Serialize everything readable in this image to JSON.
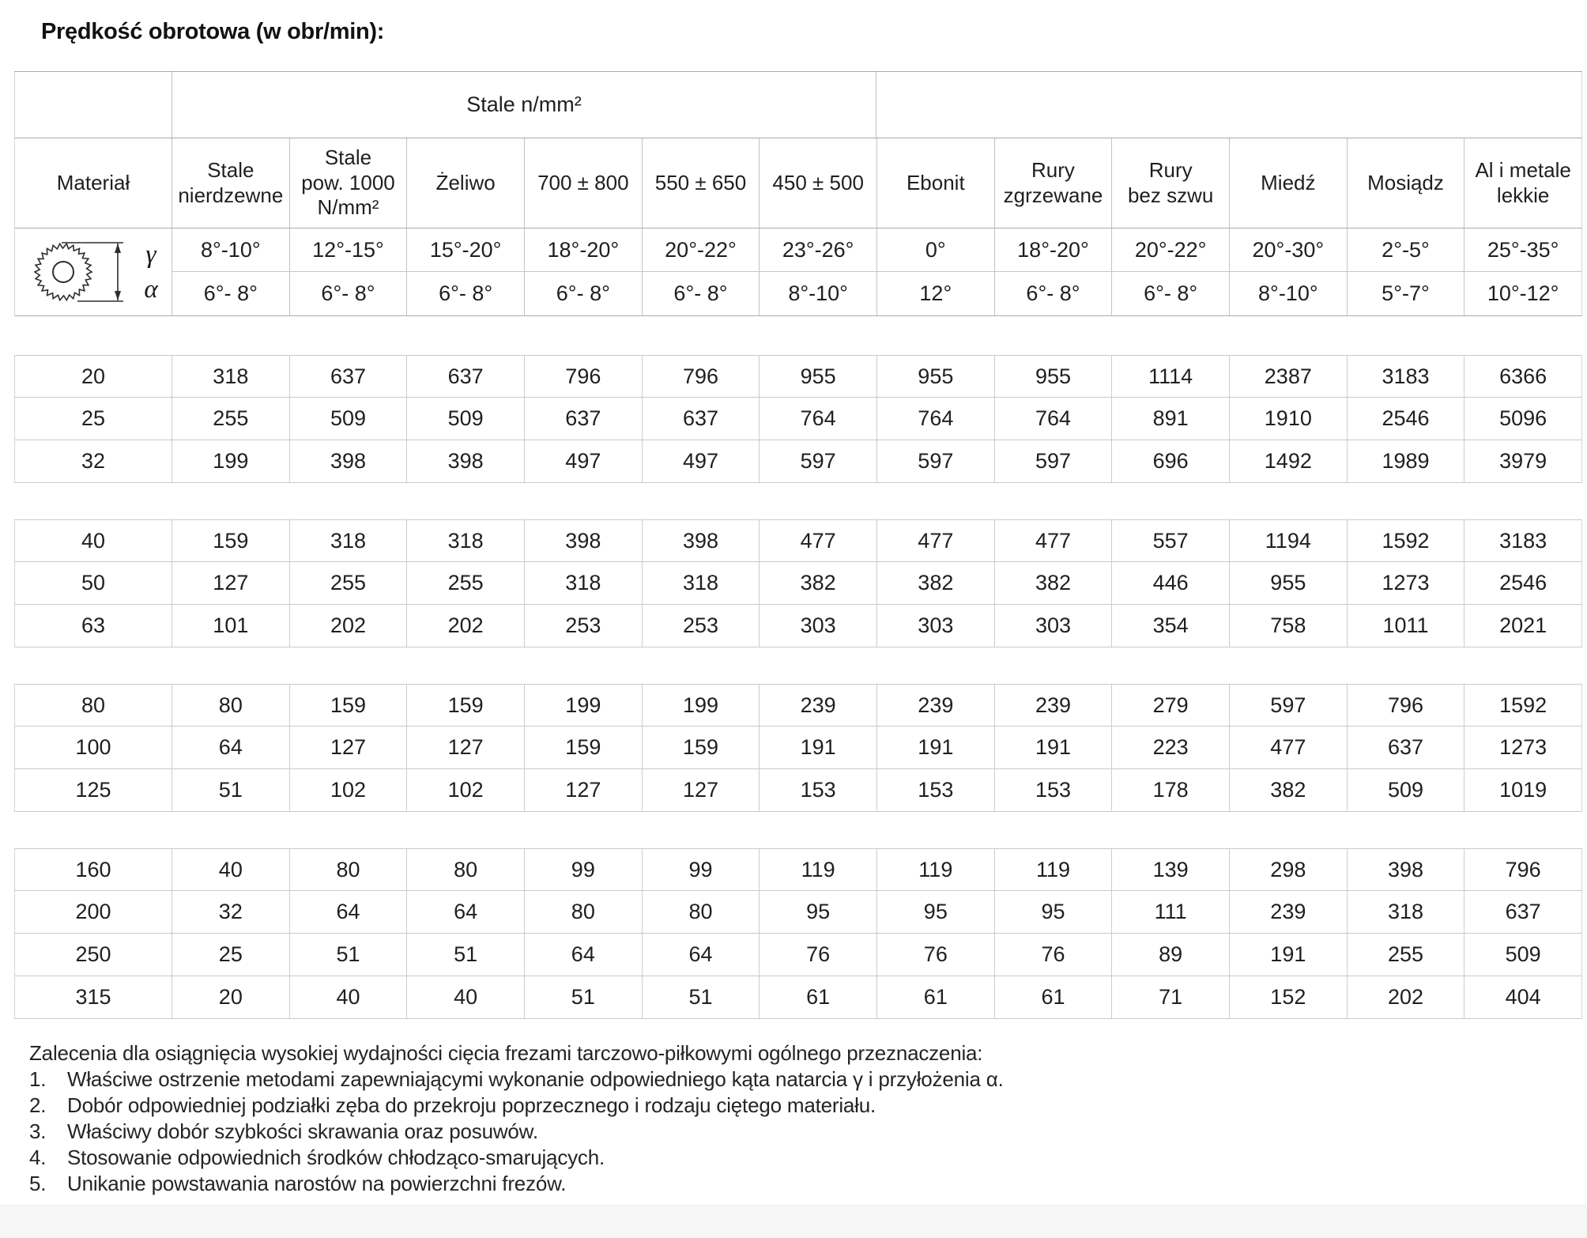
{
  "title": "Prędkość obrotowa (w obr/min):",
  "table": {
    "span_header": "Stale n/mm²",
    "columns": [
      "Materiał",
      "Stale\nnierdzewne",
      "Stale\npow. 1000\nN/mm²",
      "Żeliwo",
      "700 ± 800",
      "550 ± 650",
      "450 ± 500",
      "Ebonit",
      "Rury\nzgrzewane",
      "Rury\nbez szwu",
      "Miedź",
      "Mosiądz",
      "Al i metale\nlekkie"
    ],
    "angle_rows": {
      "gamma_label": "γ",
      "alpha_label": "α",
      "gamma": [
        "8°-10°",
        "12°-15°",
        "15°-20°",
        "18°-20°",
        "20°-22°",
        "23°-26°",
        "0°",
        "18°-20°",
        "20°-22°",
        "20°-30°",
        "2°-5°",
        "25°-35°"
      ],
      "alpha": [
        "6°- 8°",
        "6°- 8°",
        "6°- 8°",
        "6°- 8°",
        "6°- 8°",
        "8°-10°",
        "12°",
        "6°- 8°",
        "6°- 8°",
        "8°-10°",
        "5°-7°",
        "10°-12°"
      ]
    },
    "groups": [
      [
        {
          "label": "20",
          "values": [
            318,
            637,
            637,
            796,
            796,
            955,
            955,
            955,
            1114,
            2387,
            3183,
            6366
          ]
        },
        {
          "label": "25",
          "values": [
            255,
            509,
            509,
            637,
            637,
            764,
            764,
            764,
            891,
            1910,
            2546,
            5096
          ]
        },
        {
          "label": "32",
          "values": [
            199,
            398,
            398,
            497,
            497,
            597,
            597,
            597,
            696,
            1492,
            1989,
            3979
          ]
        }
      ],
      [
        {
          "label": "40",
          "values": [
            159,
            318,
            318,
            398,
            398,
            477,
            477,
            477,
            557,
            1194,
            1592,
            3183
          ]
        },
        {
          "label": "50",
          "values": [
            127,
            255,
            255,
            318,
            318,
            382,
            382,
            382,
            446,
            955,
            1273,
            2546
          ]
        },
        {
          "label": "63",
          "values": [
            101,
            202,
            202,
            253,
            253,
            303,
            303,
            303,
            354,
            758,
            1011,
            2021
          ]
        }
      ],
      [
        {
          "label": "80",
          "values": [
            80,
            159,
            159,
            199,
            199,
            239,
            239,
            239,
            279,
            597,
            796,
            1592
          ]
        },
        {
          "label": "100",
          "values": [
            64,
            127,
            127,
            159,
            159,
            191,
            191,
            191,
            223,
            477,
            637,
            1273
          ]
        },
        {
          "label": "125",
          "values": [
            51,
            102,
            102,
            127,
            127,
            153,
            153,
            153,
            178,
            382,
            509,
            1019
          ]
        }
      ],
      [
        {
          "label": "160",
          "values": [
            40,
            80,
            80,
            99,
            99,
            119,
            119,
            119,
            139,
            298,
            398,
            796
          ]
        },
        {
          "label": "200",
          "values": [
            32,
            64,
            64,
            80,
            80,
            95,
            95,
            95,
            111,
            239,
            318,
            637
          ]
        },
        {
          "label": "250",
          "values": [
            25,
            51,
            51,
            64,
            64,
            76,
            76,
            76,
            89,
            191,
            255,
            509
          ]
        },
        {
          "label": "315",
          "values": [
            20,
            40,
            40,
            51,
            51,
            61,
            61,
            61,
            71,
            152,
            202,
            404
          ]
        }
      ]
    ]
  },
  "notes": {
    "intro": "Zalecenia dla osiągnięcia wysokiej wydajności cięcia frezami tarczowo-piłkowymi ogólnego przeznaczenia:",
    "items": [
      "Właściwe ostrzenie metodami zapewniającymi wykonanie odpowiedniego kąta natarcia γ i przyłożenia α.",
      "Dobór odpowiedniej podziałki zęba do przekroju poprzecznego i rodzaju ciętego materiału.",
      "Właściwy dobór szybkości skrawania oraz posuwów.",
      "Stosowanie odpowiednich środków chłodząco-smarujących.",
      "Unikanie powstawania narostów na powierzchni frezów."
    ]
  },
  "colors": {
    "text": "#1f1f1f",
    "grid_line": "#c9c9c9",
    "header_line": "#a9a9a9",
    "bottom_strip": "#f6f6f6"
  }
}
